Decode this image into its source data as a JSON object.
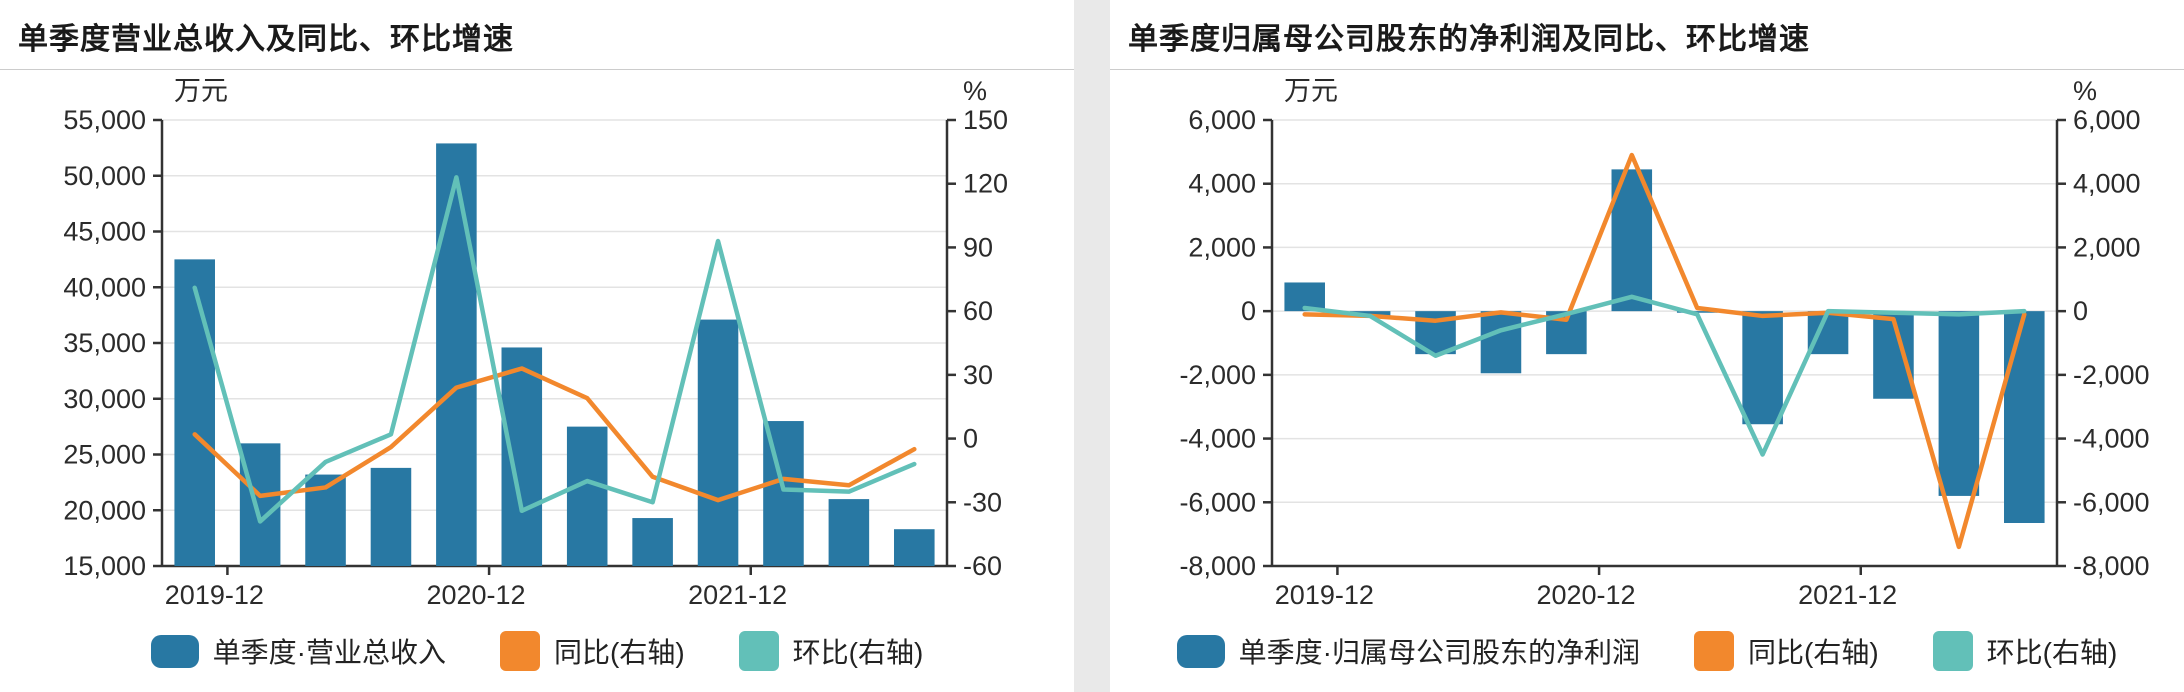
{
  "colors": {
    "bar": "#2878a3",
    "yoy": "#f2882d",
    "qoq": "#62c0b8",
    "grid": "#e3e3e3",
    "axis": "#333333",
    "text": "#2b2b2b",
    "title": "#1a1a1a",
    "divider": "#e9e9e9",
    "header_rule": "#cccccc"
  },
  "panels": [
    {
      "title": "单季度营业总收入及同比、环比增速",
      "legend": [
        {
          "label": "单季度·营业总收入",
          "color_key": "bar"
        },
        {
          "label": "同比(右轴)",
          "color_key": "yoy"
        },
        {
          "label": "环比(右轴)",
          "color_key": "qoq"
        }
      ]
    },
    {
      "title": "单季度归属母公司股东的净利润及同比、环比增速",
      "legend": [
        {
          "label": "单季度·归属母公司股东的净利润",
          "color_key": "bar"
        },
        {
          "label": "同比(右轴)",
          "color_key": "yoy"
        },
        {
          "label": "环比(右轴)",
          "color_key": "qoq"
        }
      ]
    }
  ],
  "chart_data": [
    {
      "type": "bar",
      "title": "单季度营业总收入及同比、环比增速",
      "num_points": 12,
      "x_ticks": [
        {
          "index": 0,
          "label": "2019-12"
        },
        {
          "index": 4,
          "label": "2020-12"
        },
        {
          "index": 8,
          "label": "2021-12"
        }
      ],
      "left_axis": {
        "unit": "万元",
        "min": 15000,
        "max": 55000,
        "step": 5000
      },
      "right_axis": {
        "unit": "%",
        "min": -60,
        "max": 150,
        "step": 30
      },
      "grid": true,
      "legend_position": "bottom",
      "series": [
        {
          "name": "单季度·营业总收入",
          "type": "bar",
          "axis": "left",
          "color_key": "bar",
          "values": [
            42500,
            26000,
            23200,
            23800,
            52900,
            34600,
            27500,
            19300,
            37100,
            28000,
            21000,
            18300
          ]
        },
        {
          "name": "同比(右轴)",
          "type": "line",
          "axis": "right",
          "color_key": "yoy",
          "values": [
            2,
            -27,
            -23,
            -4,
            24,
            33,
            19,
            -18,
            -29,
            -19,
            -22,
            -5
          ]
        },
        {
          "name": "环比(右轴)",
          "type": "line",
          "axis": "right",
          "color_key": "qoq",
          "values": [
            71,
            -39,
            -11,
            2,
            123,
            -34,
            -20,
            -30,
            93,
            -24,
            -25,
            -12
          ]
        }
      ]
    },
    {
      "type": "bar",
      "title": "单季度归属母公司股东的净利润及同比、环比增速",
      "num_points": 12,
      "x_ticks": [
        {
          "index": 0,
          "label": "2019-12"
        },
        {
          "index": 4,
          "label": "2020-12"
        },
        {
          "index": 8,
          "label": "2021-12"
        }
      ],
      "left_axis": {
        "unit": "万元",
        "min": -8000,
        "max": 6000,
        "step": 2000
      },
      "right_axis": {
        "unit": "%",
        "min": -8000,
        "max": 6000,
        "step": 2000
      },
      "grid": true,
      "legend_position": "bottom",
      "series": [
        {
          "name": "单季度·归属母公司股东的净利润",
          "type": "bar",
          "axis": "left",
          "color_key": "bar",
          "values": [
            900,
            -150,
            -1350,
            -1950,
            -1350,
            4450,
            -50,
            -3550,
            -1350,
            -2750,
            -5800,
            -6650
          ]
        },
        {
          "name": "同比(右轴)",
          "type": "line",
          "axis": "right",
          "color_key": "yoy",
          "values": [
            -100,
            -150,
            -300,
            -40,
            -270,
            4900,
            100,
            -150,
            -50,
            -250,
            -7400,
            -100
          ]
        },
        {
          "name": "环比(右轴)",
          "type": "line",
          "axis": "right",
          "color_key": "qoq",
          "values": [
            100,
            -150,
            -1400,
            -600,
            -90,
            450,
            -100,
            -4500,
            0,
            -50,
            -100,
            0
          ]
        }
      ]
    }
  ]
}
